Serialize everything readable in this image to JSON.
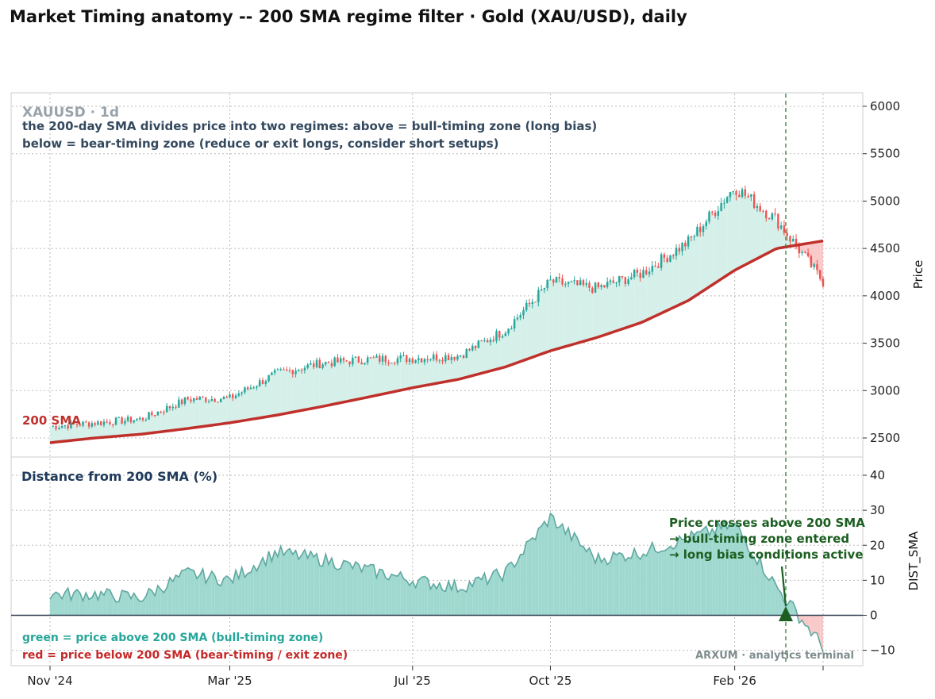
{
  "title": "Market Timing anatomy -- 200 SMA regime filter  ·  Gold (XAU/USD), daily",
  "top_panel": {
    "symbol": "XAUUSD · 1d",
    "subtitle_line1": "the 200-day SMA divides price into two regimes: above = bull-timing zone (long bias)",
    "subtitle_line2": "below = bear-timing zone (reduce or exit longs, consider short setups)",
    "sma_label": "200 SMA",
    "ylabel": "Price",
    "yticks": [
      "2500",
      "3000",
      "3500",
      "4000",
      "4500",
      "5000",
      "5500",
      "6000"
    ]
  },
  "bottom_panel": {
    "title": "Distance from 200 SMA (%)",
    "ylabel": "DIST_SMA",
    "yticks": [
      "−10",
      "0",
      "10",
      "20",
      "30",
      "40"
    ],
    "legend_green": "green = price above 200 SMA  (bull-timing zone)",
    "legend_red": "red = price below 200 SMA  (bear-timing / exit zone)",
    "annotation_line1": "Price crosses above 200 SMA",
    "annotation_line2": "→ bull-timing zone entered",
    "annotation_line3": "→ long bias conditions active",
    "watermark": "ARXUM · analytics terminal"
  },
  "xticks": [
    "Nov '24",
    "Mar '25",
    "Jul '25",
    "Oct '25",
    "Feb '26"
  ],
  "colors": {
    "up": "#26a69a",
    "down": "#ef5350",
    "sma": "#c0302b",
    "fill_above": "#d5efe9",
    "fill_below": "#f9c9c9",
    "annotation": "#1b5e20"
  },
  "chart_data": [
    {
      "type": "line",
      "title": "XAUUSD · 1d",
      "ylabel": "Price",
      "ylim": [
        2300,
        6150
      ],
      "x": [
        "2024-11-01",
        "2024-12-01",
        "2025-01-01",
        "2025-02-01",
        "2025-03-01",
        "2025-04-01",
        "2025-05-01",
        "2025-06-01",
        "2025-07-01",
        "2025-08-01",
        "2025-09-01",
        "2025-10-01",
        "2025-11-01",
        "2025-12-01",
        "2026-01-01",
        "2026-02-01",
        "2026-03-01",
        "2026-04-01"
      ],
      "series": [
        {
          "name": "Price",
          "values": [
            2620,
            2660,
            2700,
            2910,
            2920,
            3180,
            3290,
            3330,
            3340,
            3370,
            3640,
            4150,
            4080,
            4240,
            4570,
            5150,
            4800,
            4150
          ]
        },
        {
          "name": "200 SMA",
          "values": [
            2450,
            2500,
            2540,
            2600,
            2660,
            2740,
            2830,
            2930,
            3030,
            3120,
            3250,
            3420,
            3560,
            3720,
            3950,
            4270,
            4500,
            4580
          ]
        }
      ],
      "grid": true
    },
    {
      "type": "area",
      "title": "Distance from 200 SMA (%)",
      "ylabel": "DIST_SMA",
      "ylim": [
        -12,
        44
      ],
      "x": [
        "2024-11-01",
        "2024-12-01",
        "2025-01-01",
        "2025-02-01",
        "2025-03-01",
        "2025-04-01",
        "2025-05-01",
        "2025-06-01",
        "2025-07-01",
        "2025-08-01",
        "2025-09-01",
        "2025-10-01",
        "2025-11-01",
        "2025-12-01",
        "2026-01-01",
        "2026-02-01",
        "2026-03-01",
        "2026-04-01"
      ],
      "values": [
        6,
        6,
        5,
        12,
        10,
        18,
        16,
        13,
        10,
        8,
        12,
        28,
        16,
        18,
        22,
        26,
        8,
        -9
      ],
      "grid": true
    }
  ]
}
